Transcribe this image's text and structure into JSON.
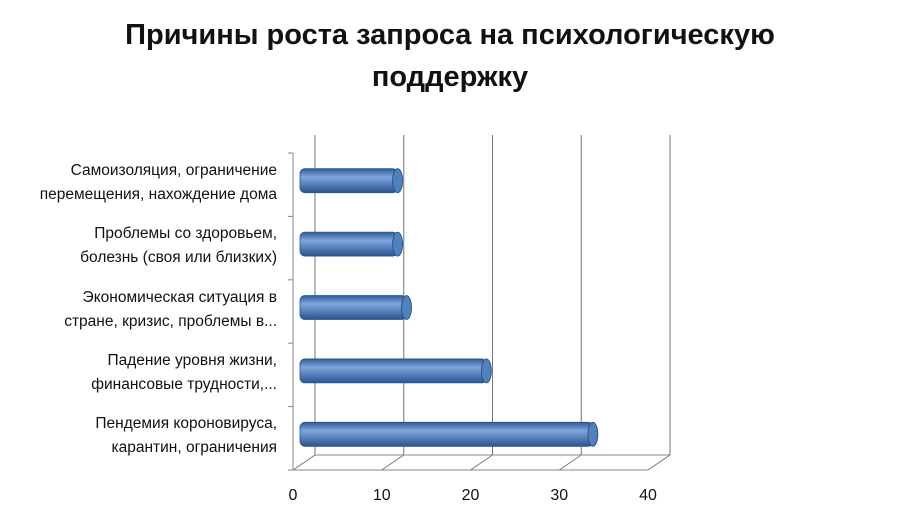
{
  "chart_data": {
    "type": "bar",
    "orientation": "horizontal",
    "title": "Причины роста запроса на психологическую поддержку",
    "categories": [
      "Самоизоляция, ограничение\nперемещения, нахождение дома",
      "Проблемы со здоровьем,\nболезнь (своя или близких)",
      "Экономическая  ситуация в\nстране, кризис, проблемы в...",
      "Падение уровня жизни,\nфинансовые трудности,...",
      "Пендемия короновируса,\nкарантин, ограничения"
    ],
    "values": [
      11,
      11,
      12,
      21,
      33
    ],
    "color": "#4f81bd",
    "xlim": [
      0,
      40
    ],
    "xticks": [
      0,
      10,
      20,
      30,
      40
    ],
    "grid": true
  }
}
